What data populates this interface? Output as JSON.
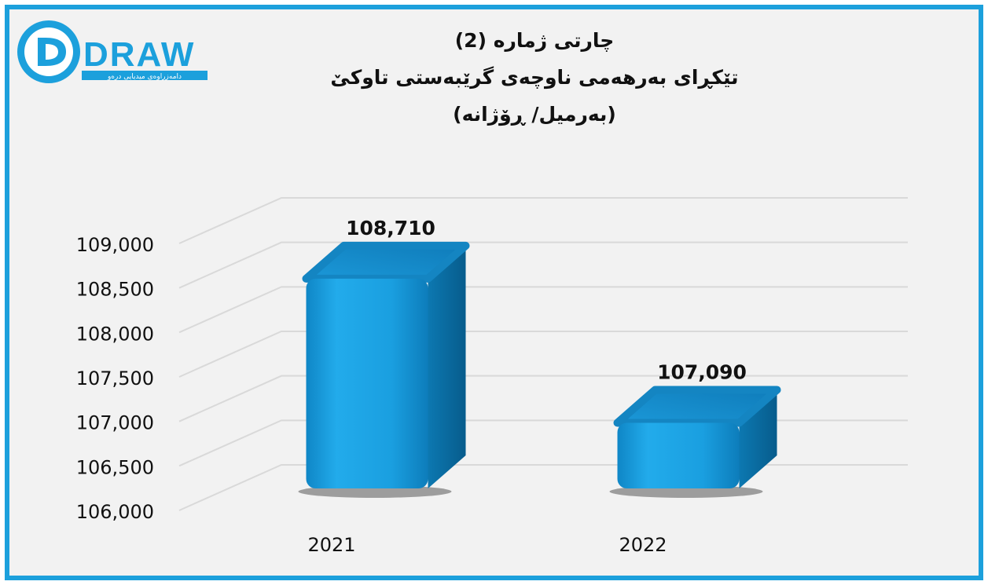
{
  "logo": {
    "wordmark": "DRAW",
    "subtitle": "دامەزراوەی میدیایی درەو"
  },
  "title_lines": [
    "چارتی ژمارە (2)",
    "تێکڕای بەرهەمی ناوچەی گرێبەستی تاوکێ",
    "(بەرمیل/ ڕۆژانە)"
  ],
  "colors": {
    "frame": "#1ca0dc",
    "bar_front": "#1a9fe0",
    "bar_side": "#0a6fa3",
    "bar_top": "#1485c2",
    "background": "#f2f2f2",
    "grid": "#d9d9d9"
  },
  "chart_data": {
    "type": "bar",
    "categories": [
      "2021",
      "2022"
    ],
    "values": [
      108710,
      107090
    ],
    "data_labels": [
      "108,710",
      "107,090"
    ],
    "ylim": [
      106000,
      109000
    ],
    "yticks": [
      106000,
      106500,
      107000,
      107500,
      108000,
      108500,
      109000
    ],
    "ytick_labels": [
      "106,000",
      "106,500",
      "107,000",
      "107,500",
      "108,000",
      "108,500",
      "109,000"
    ],
    "title": "",
    "xlabel": "",
    "ylabel": "",
    "grid": true,
    "style": "3d-column"
  }
}
